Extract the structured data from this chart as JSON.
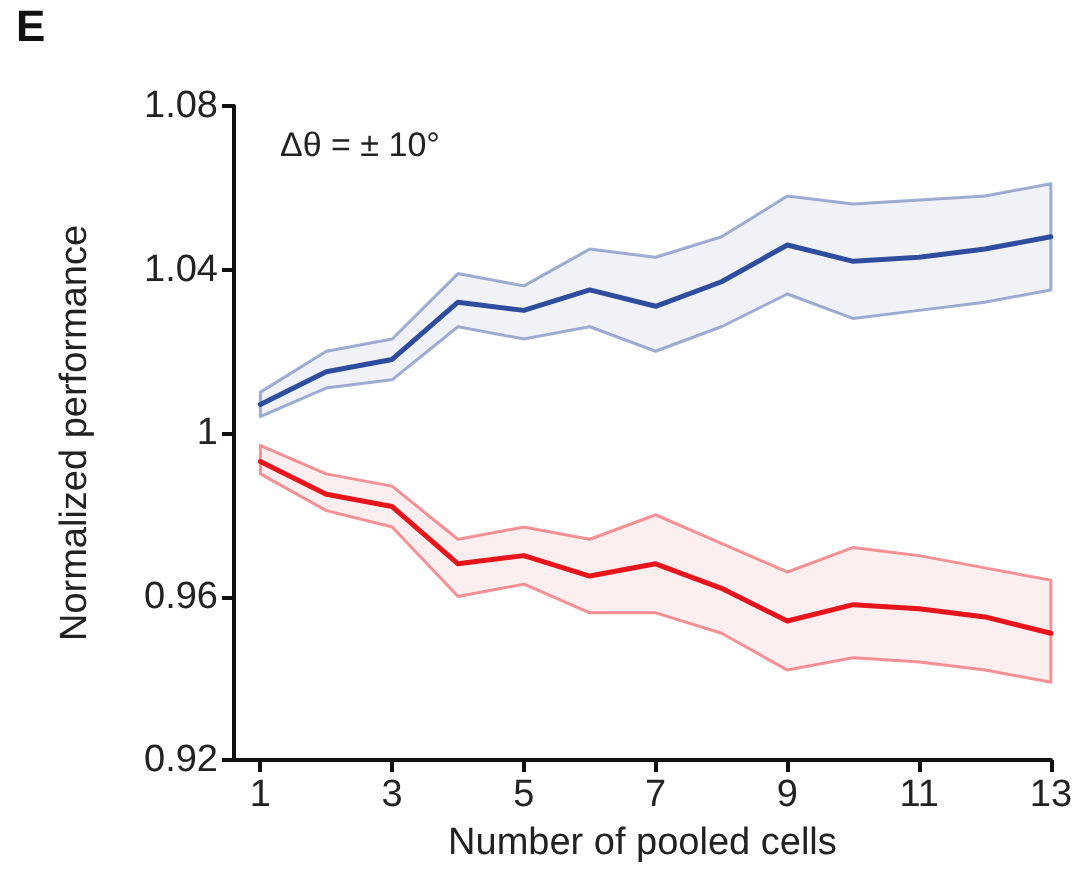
{
  "chart_data": {
    "type": "line",
    "xlabel": "Number of pooled cells",
    "ylabel": "Normalized performance",
    "annotations": [
      "E",
      "Δθ = ± 10°"
    ],
    "x": [
      1,
      2,
      3,
      4,
      5,
      6,
      7,
      8,
      9,
      10,
      11,
      12,
      13
    ],
    "series": [
      {
        "color": "#2f4d9e",
        "values": [
          1.007,
          1.015,
          1.018,
          1.032,
          1.03,
          1.035,
          1.031,
          1.037,
          1.046,
          1.042,
          1.043,
          1.045,
          1.048
        ],
        "lower": [
          1.004,
          1.011,
          1.013,
          1.026,
          1.023,
          1.026,
          1.02,
          1.026,
          1.034,
          1.028,
          1.03,
          1.032,
          1.035
        ],
        "upper": [
          1.01,
          1.02,
          1.023,
          1.039,
          1.036,
          1.045,
          1.043,
          1.048,
          1.058,
          1.056,
          1.057,
          1.058,
          1.061
        ]
      },
      {
        "color": "#e8141c",
        "values": [
          0.993,
          0.985,
          0.982,
          0.968,
          0.97,
          0.965,
          0.968,
          0.962,
          0.954,
          0.958,
          0.957,
          0.955,
          0.951
        ],
        "lower": [
          0.99,
          0.981,
          0.977,
          0.96,
          0.963,
          0.956,
          0.956,
          0.951,
          0.942,
          0.945,
          0.944,
          0.942,
          0.939
        ],
        "upper": [
          0.997,
          0.99,
          0.987,
          0.974,
          0.977,
          0.974,
          0.98,
          0.973,
          0.966,
          0.972,
          0.97,
          0.967,
          0.964
        ]
      }
    ],
    "xlim": [
      0.6,
      13
    ],
    "xticks": [
      1,
      3,
      5,
      7,
      9,
      11,
      13
    ],
    "ylim": [
      0.92,
      1.08
    ],
    "yticks": [
      0.92,
      0.96,
      1,
      1.04,
      1.08
    ],
    "grid": false,
    "marker": "none",
    "line_style": "solid"
  }
}
